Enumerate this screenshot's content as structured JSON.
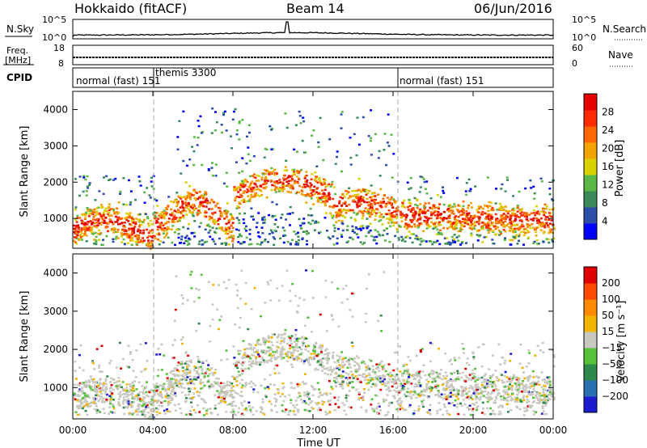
{
  "header": {
    "station": "Hokkaido (fitACF)",
    "beam": "Beam 14",
    "date": "06/Jun/2016"
  },
  "panels": {
    "nsky": {
      "label": "N.Sky",
      "left_ticks": [
        "10^5",
        "10^0"
      ],
      "right_ticks": [
        "10^5",
        "10^0"
      ],
      "right_label": "N.Search"
    },
    "freq": {
      "label_line1": "Freq.",
      "label_line2": "[MHz]",
      "left_ticks": [
        "18",
        "8"
      ],
      "right_ticks": [
        "60",
        "0"
      ],
      "right_label": "Nave"
    },
    "cpid": {
      "label": "CPID",
      "segments": [
        {
          "label": "normal (fast) 151",
          "start": 0,
          "end": 4
        },
        {
          "label": "themis 3300",
          "start": 4,
          "end": 16
        },
        {
          "label": "normal (fast) 151",
          "start": 16,
          "end": 24
        }
      ]
    }
  },
  "chart_data": [
    {
      "type": "heatmap",
      "name": "power",
      "ylabel": "Slant Range [km]",
      "xlabel": "Time UT",
      "x_range_hours": [
        0,
        24
      ],
      "y_range_km": [
        180,
        4500
      ],
      "y_ticks": [
        "1000",
        "2000",
        "3000",
        "4000"
      ],
      "x_ticks": [
        "00:00",
        "04:00",
        "08:00",
        "12:00",
        "16:00",
        "20:00",
        "00:00"
      ],
      "colorbar": {
        "label": "Power [dB]",
        "ticks": [
          "4",
          "8",
          "12",
          "16",
          "20",
          "24",
          "28"
        ],
        "colors": [
          "#0000ff",
          "#2b4fa8",
          "#3a8a5a",
          "#5ab847",
          "#d9d200",
          "#f2a500",
          "#ff6a00",
          "#ff2a00",
          "#e60000"
        ]
      }
    },
    {
      "type": "heatmap",
      "name": "velocity",
      "ylabel": "Slant Range [km]",
      "xlabel": "Time UT",
      "x_range_hours": [
        0,
        24
      ],
      "y_range_km": [
        180,
        4500
      ],
      "y_ticks": [
        "1000",
        "2000",
        "3000",
        "4000"
      ],
      "x_ticks": [
        "00:00",
        "04:00",
        "08:00",
        "12:00",
        "16:00",
        "20:00",
        "00:00"
      ],
      "colorbar": {
        "label": "Velocity [m s⁻¹]",
        "ticks": [
          "200",
          "100",
          "50",
          "15",
          "−15",
          "−50",
          "−100",
          "−200"
        ],
        "colors": [
          "#1b1bcf",
          "#2a6fb0",
          "#2e8a4a",
          "#55c23a",
          "#c8c8c0",
          "#f2b400",
          "#ff8a00",
          "#ff4a00",
          "#e00000"
        ]
      }
    }
  ],
  "colors": {
    "gray_scatter": "#c8c8c0",
    "dashed_lines": "#aaaaaa"
  }
}
